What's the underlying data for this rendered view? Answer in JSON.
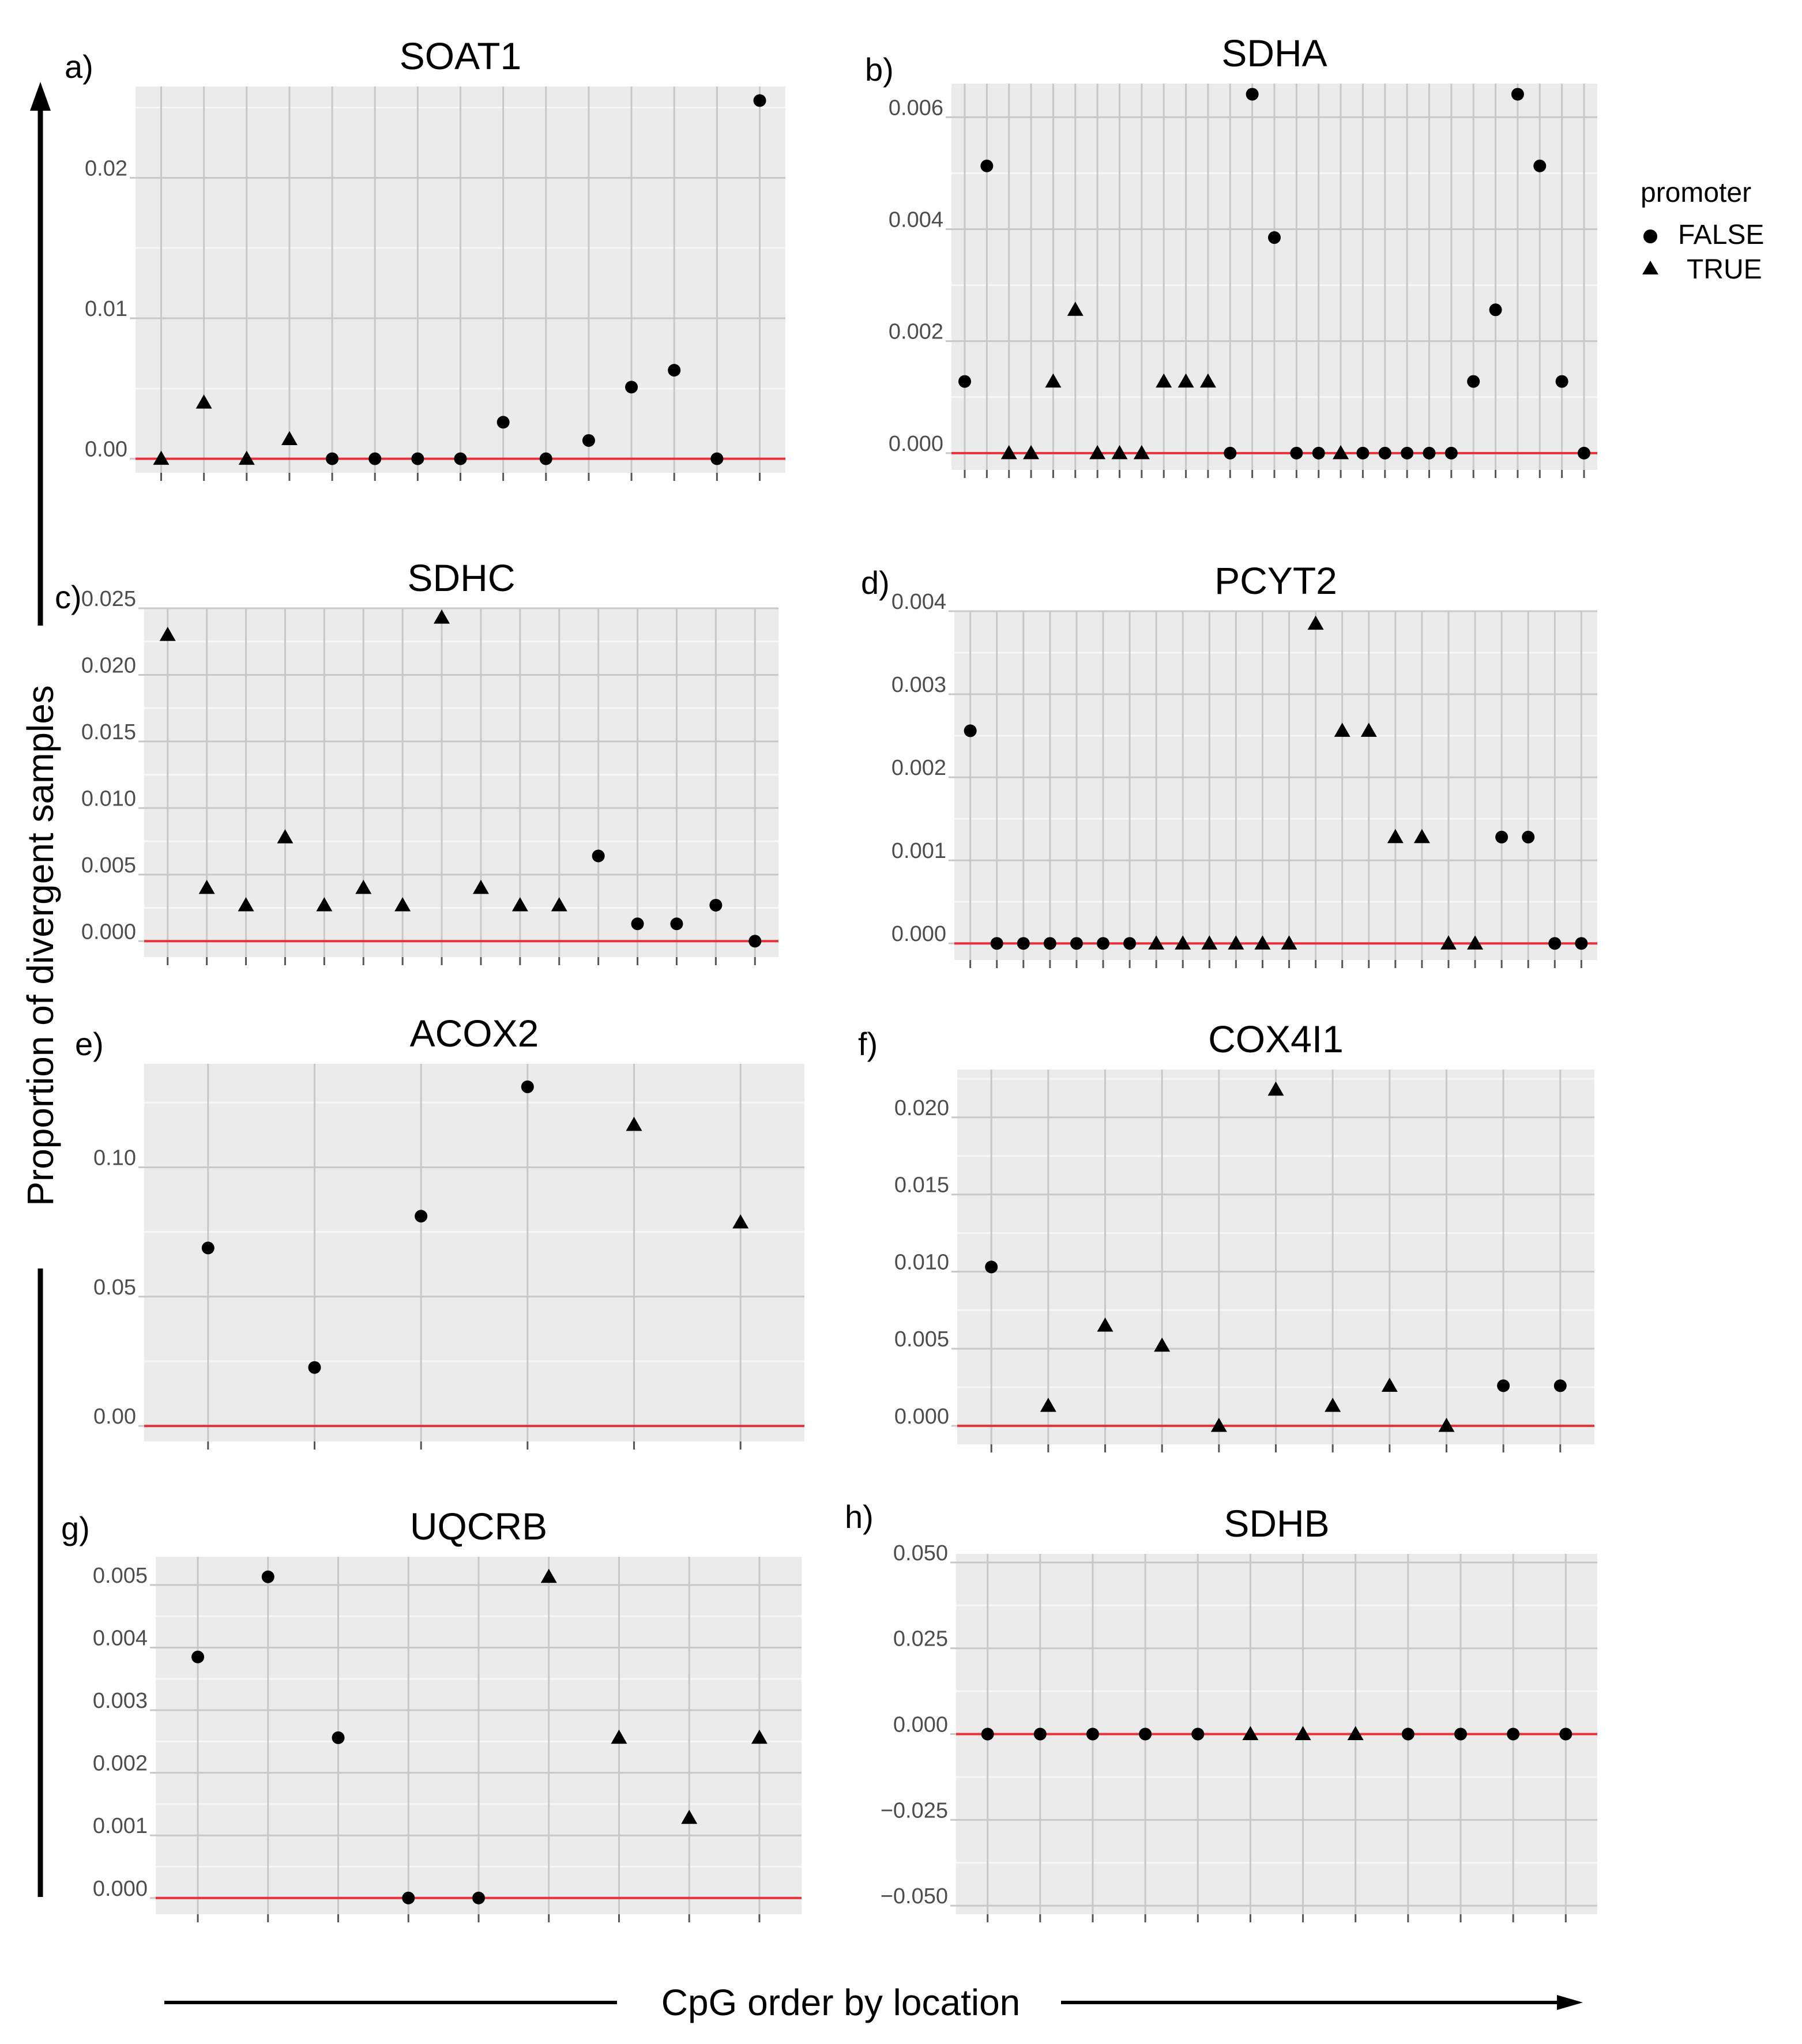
{
  "figure": {
    "y_axis_label": "Proportion of divergent samples",
    "x_axis_label": "CpG order by location",
    "legend": {
      "title": "promoter",
      "items": [
        {
          "label": "FALSE",
          "shape": "circle"
        },
        {
          "label": "TRUE",
          "shape": "triangle"
        }
      ]
    },
    "colors": {
      "panel_bg": "#ebebeb",
      "grid_major": "#c8c8c8",
      "grid_minor": "#f7f7f7",
      "zero_line": "#e8303a",
      "marker": "#000000",
      "tick_text": "#4d4d4d"
    }
  },
  "chart_data": [
    {
      "type": "scatter",
      "label": "a)",
      "title": "SOAT1",
      "ylim": [
        -0.001,
        0.0265
      ],
      "yticks": [
        0.0,
        0.01,
        0.02
      ],
      "ytick_labels": [
        "0.00",
        "0.01",
        "0.02"
      ],
      "values": [
        0.0,
        0.004,
        0.0,
        0.0014,
        0.0,
        0.0,
        0.0,
        0.0,
        0.0026,
        0.0,
        0.0013,
        0.0051,
        0.0063,
        0.0,
        0.0255
      ],
      "promoter": [
        true,
        true,
        true,
        true,
        false,
        false,
        false,
        false,
        false,
        false,
        false,
        false,
        false,
        false,
        false
      ]
    },
    {
      "type": "scatter",
      "label": "b)",
      "title": "SDHA",
      "ylim": [
        -0.0003,
        0.0066
      ],
      "yticks": [
        0.0,
        0.002,
        0.004,
        0.006
      ],
      "ytick_labels": [
        "0.000",
        "0.002",
        "0.004",
        "0.006"
      ],
      "values": [
        0.00128,
        0.00513,
        0.0,
        0.0,
        0.00128,
        0.00256,
        0.0,
        0.0,
        0.0,
        0.00128,
        0.00128,
        0.00128,
        0.0,
        0.00641,
        0.00385,
        0.0,
        0.0,
        0.0,
        0.0,
        0.0,
        0.0,
        0.0,
        0.0,
        0.00128,
        0.00256,
        0.00641,
        0.00513,
        0.00128,
        0.0
      ],
      "promoter": [
        false,
        false,
        true,
        true,
        true,
        true,
        true,
        true,
        true,
        true,
        true,
        true,
        false,
        false,
        false,
        false,
        false,
        true,
        false,
        false,
        false,
        false,
        false,
        false,
        false,
        false,
        false,
        false,
        false
      ]
    },
    {
      "type": "scatter",
      "label": "c)",
      "title": "SDHC",
      "ylim": [
        -0.0012,
        0.025
      ],
      "yticks": [
        0.0,
        0.005,
        0.01,
        0.015,
        0.02,
        0.025
      ],
      "ytick_labels": [
        "0.000",
        "0.005",
        "0.010",
        "0.015",
        "0.020",
        "0.025"
      ],
      "values": [
        0.023,
        0.004,
        0.0027,
        0.0078,
        0.0027,
        0.004,
        0.0027,
        0.0243,
        0.004,
        0.0027,
        0.0027,
        0.0064,
        0.0013,
        0.0013,
        0.0027,
        0.0
      ],
      "promoter": [
        true,
        true,
        true,
        true,
        true,
        true,
        true,
        true,
        true,
        true,
        true,
        false,
        false,
        false,
        false,
        false
      ]
    },
    {
      "type": "scatter",
      "label": "d)",
      "title": "PCYT2",
      "ylim": [
        -0.0002,
        0.004
      ],
      "yticks": [
        0.0,
        0.001,
        0.002,
        0.003,
        0.004
      ],
      "ytick_labels": [
        "0.000",
        "0.001",
        "0.002",
        "0.003",
        "0.004"
      ],
      "values": [
        0.00256,
        0.0,
        0.0,
        0.0,
        0.0,
        0.0,
        0.0,
        0.0,
        0.0,
        0.0,
        0.0,
        0.0,
        0.0,
        0.00385,
        0.00256,
        0.00256,
        0.00128,
        0.00128,
        0.0,
        0.0,
        0.00128,
        0.00128,
        0.0,
        0.0
      ],
      "promoter": [
        false,
        false,
        false,
        false,
        false,
        false,
        false,
        true,
        true,
        true,
        true,
        true,
        true,
        true,
        true,
        true,
        true,
        true,
        true,
        true,
        false,
        false,
        false,
        false
      ]
    },
    {
      "type": "scatter",
      "label": "e)",
      "title": "ACOX2",
      "ylim": [
        -0.006,
        0.14
      ],
      "yticks": [
        0.0,
        0.05,
        0.1
      ],
      "ytick_labels": [
        "0.00",
        "0.05",
        "0.10"
      ],
      "values": [
        0.0688,
        0.0226,
        0.0811,
        0.1311,
        0.1164,
        0.0787
      ],
      "promoter": [
        false,
        false,
        false,
        false,
        true,
        true
      ]
    },
    {
      "type": "scatter",
      "label": "f)",
      "title": "COX4I1",
      "ylim": [
        -0.0012,
        0.0231
      ],
      "yticks": [
        0.0,
        0.005,
        0.01,
        0.015,
        0.02
      ],
      "ytick_labels": [
        "0.000",
        "0.005",
        "0.010",
        "0.015",
        "0.020"
      ],
      "values": [
        0.0103,
        0.0013,
        0.0065,
        0.0052,
        0.0,
        0.0218,
        0.0013,
        0.0026,
        0.0,
        0.0026,
        0.0026
      ],
      "promoter": [
        false,
        true,
        true,
        true,
        true,
        true,
        true,
        true,
        true,
        false,
        false
      ]
    },
    {
      "type": "scatter",
      "label": "g)",
      "title": "UQCRB",
      "ylim": [
        -0.00026,
        0.00545
      ],
      "yticks": [
        0.0,
        0.001,
        0.002,
        0.003,
        0.004,
        0.005
      ],
      "ytick_labels": [
        "0.000",
        "0.001",
        "0.002",
        "0.003",
        "0.004",
        "0.005"
      ],
      "values": [
        0.00385,
        0.00513,
        0.00256,
        0.0,
        0.0,
        0.00513,
        0.00256,
        0.00128,
        0.00256
      ],
      "promoter": [
        false,
        false,
        false,
        false,
        false,
        true,
        true,
        true,
        true
      ]
    },
    {
      "type": "scatter",
      "label": "h)",
      "title": "SDHB",
      "ylim": [
        -0.0525,
        0.0525
      ],
      "yticks": [
        -0.05,
        -0.025,
        0.0,
        0.025,
        0.05
      ],
      "ytick_labels": [
        "−0.050",
        "−0.025",
        "0.000",
        "0.025",
        "0.050"
      ],
      "values": [
        0,
        0,
        0,
        0,
        0,
        0,
        0,
        0,
        0,
        0,
        0,
        0
      ],
      "promoter": [
        false,
        false,
        false,
        false,
        false,
        true,
        true,
        true,
        false,
        false,
        false,
        false
      ]
    }
  ]
}
